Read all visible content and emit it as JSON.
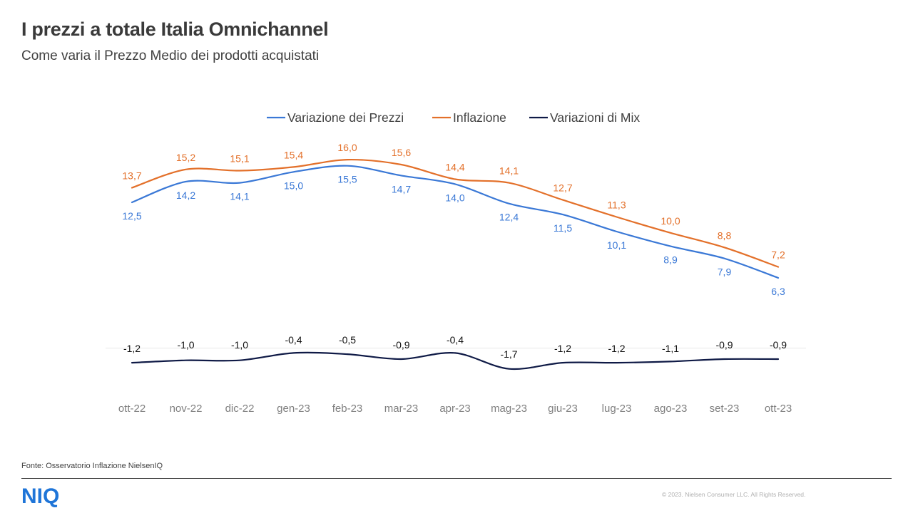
{
  "header": {
    "title": "I prezzi a totale Italia Omnichannel",
    "subtitle": "Come varia il Prezzo Medio dei prodotti acquistati"
  },
  "footer": {
    "source": "Fonte: Osservatorio Inflazione NielsenIQ",
    "logo": "NIQ",
    "copyright": "© 2023. Nielsen Consumer LLC. All Rights Reserved."
  },
  "chart_data": {
    "type": "line",
    "categories": [
      "ott-22",
      "nov-22",
      "dic-22",
      "gen-23",
      "feb-23",
      "mar-23",
      "apr-23",
      "mag-23",
      "giu-23",
      "lug-23",
      "ago-23",
      "set-23",
      "ott-23"
    ],
    "legend_position": "top",
    "grid": false,
    "series": [
      {
        "name": "Variazione dei Prezzi",
        "color": "#3a78d6",
        "values": [
          12.5,
          14.2,
          14.1,
          15.0,
          15.5,
          14.7,
          14.0,
          12.4,
          11.5,
          10.1,
          8.9,
          7.9,
          6.3
        ],
        "labels": [
          "12,5",
          "14,2",
          "14,1",
          "15,0",
          "15,5",
          "14,7",
          "14,0",
          "12,4",
          "11,5",
          "10,1",
          "8,9",
          "7,9",
          "6,3"
        ]
      },
      {
        "name": "Inflazione",
        "color": "#e3702a",
        "values": [
          13.7,
          15.2,
          15.1,
          15.4,
          16.0,
          15.6,
          14.4,
          14.1,
          12.7,
          11.3,
          10.0,
          8.8,
          7.2
        ],
        "labels": [
          "13,7",
          "15,2",
          "15,1",
          "15,4",
          "16,0",
          "15,6",
          "14,4",
          "14,1",
          "12,7",
          "11,3",
          "10,0",
          "8,8",
          "7,2"
        ]
      },
      {
        "name": "Variazioni di Mix",
        "color": "#0f1a46",
        "values": [
          -1.2,
          -1.0,
          -1.0,
          -0.4,
          -0.5,
          -0.9,
          -0.4,
          -1.7,
          -1.2,
          -1.2,
          -1.1,
          -0.9,
          -0.9
        ],
        "labels": [
          "-1,2",
          "-1,0",
          "-1,0",
          "-0,4",
          "-0,5",
          "-0,9",
          "-0,4",
          "-1,7",
          "-1,2",
          "-1,2",
          "-1,1",
          "-0,9",
          "-0,9"
        ]
      }
    ]
  }
}
